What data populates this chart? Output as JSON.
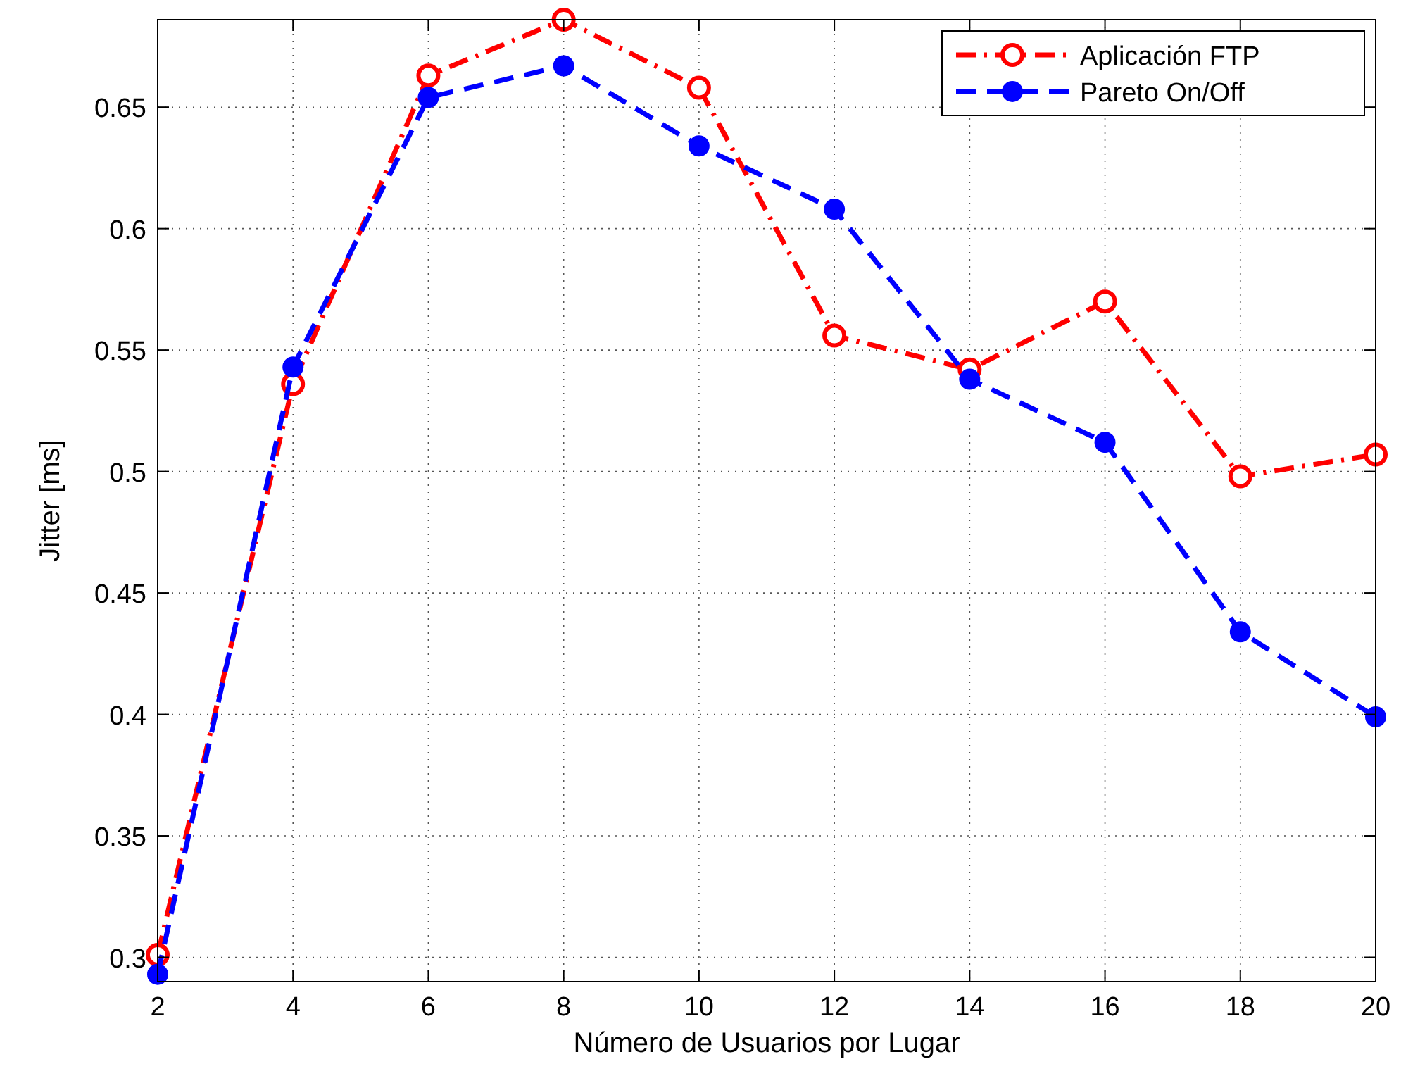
{
  "chart_data": {
    "type": "line",
    "xlabel": "Número de Usuarios por Lugar",
    "ylabel": "Jitter [ms]",
    "x": [
      2,
      4,
      6,
      8,
      10,
      12,
      14,
      16,
      18,
      20
    ],
    "series": [
      {
        "name": "Aplicación FTP",
        "color": "#ff0000",
        "line_style": "dashdot",
        "marker": "circle",
        "values": [
          0.301,
          0.536,
          0.663,
          0.686,
          0.658,
          0.556,
          0.542,
          0.57,
          0.498,
          0.507
        ]
      },
      {
        "name": "Pareto On/Off",
        "color": "#0000ff",
        "line_style": "dashed",
        "marker": "circle",
        "values": [
          0.293,
          0.543,
          0.654,
          0.667,
          0.634,
          0.608,
          0.538,
          0.512,
          0.434,
          0.399
        ]
      }
    ],
    "xlim": [
      2,
      20
    ],
    "xticks": [
      2,
      4,
      6,
      8,
      10,
      12,
      14,
      16,
      18,
      20
    ],
    "ylim": [
      0.29,
      0.686
    ],
    "yticks": [
      0.3,
      0.35,
      0.4,
      0.45,
      0.5,
      0.55,
      0.6,
      0.65
    ],
    "grid": true,
    "legend": "top right"
  }
}
